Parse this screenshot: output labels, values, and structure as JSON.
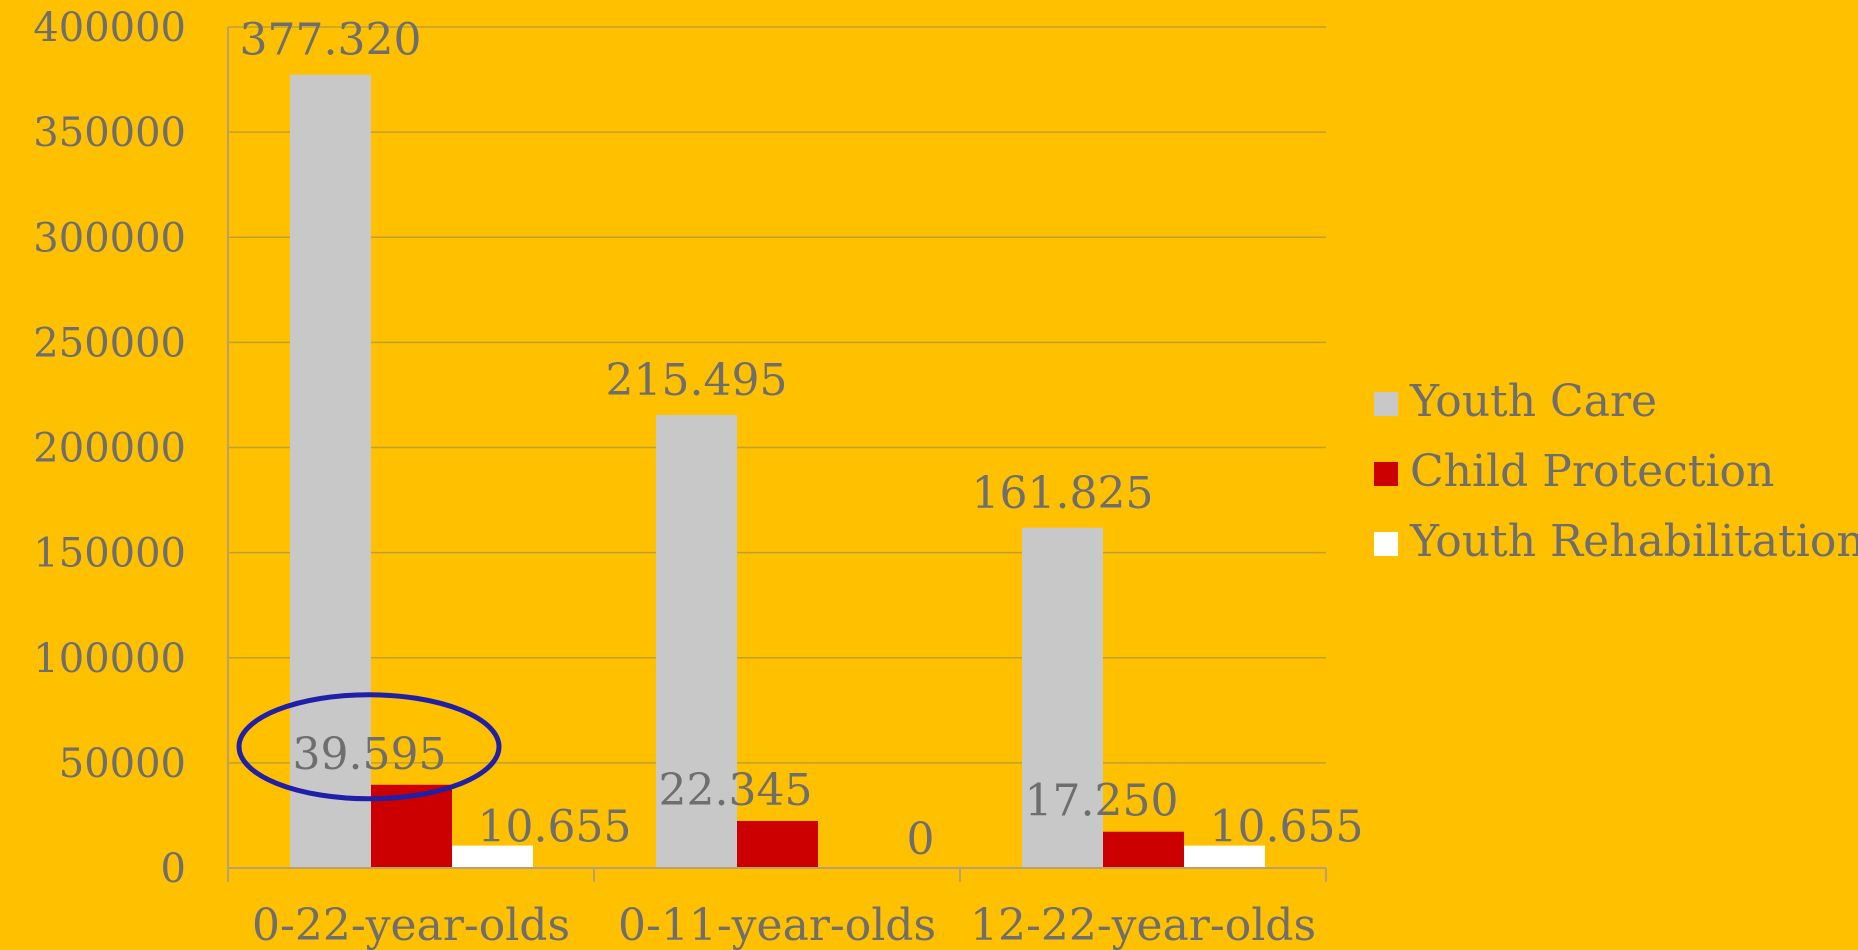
{
  "chart_data": {
    "type": "bar",
    "categories": [
      "0-22-year-olds",
      "0-11-year-olds",
      "12-22-year-olds"
    ],
    "series": [
      {
        "name": "Youth Care",
        "color": "#C8C8C8",
        "values": [
          377320,
          215495,
          161825
        ],
        "labels": [
          "377.320",
          "215.495",
          "161.825"
        ]
      },
      {
        "name": "Child Protection",
        "color": "#CC0000",
        "values": [
          39595,
          22345,
          17250
        ],
        "labels": [
          "39.595",
          "22.345",
          "17.250"
        ]
      },
      {
        "name": "Youth Rehabilitation",
        "color": "#FFFFFF",
        "values": [
          10655,
          0,
          10655
        ],
        "labels": [
          "10.655",
          "0",
          "10.655"
        ]
      }
    ],
    "ylim": [
      0,
      400000
    ],
    "yticks": [
      0,
      50000,
      100000,
      150000,
      200000,
      250000,
      300000,
      350000,
      400000
    ],
    "grid": true,
    "legend_position": "right",
    "highlight": {
      "category_index": 0,
      "series_index": 1,
      "shape": "ellipse",
      "color": "#1F1FA8"
    },
    "colors": {
      "background": "#FFC000",
      "grid": "#BFA030",
      "axis": "#B8A070",
      "text": "#6E6E6E"
    }
  }
}
